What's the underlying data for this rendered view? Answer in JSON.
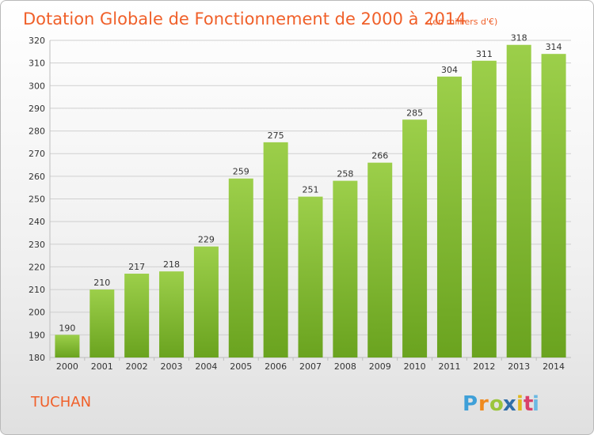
{
  "chart_data": {
    "type": "bar",
    "title": "Dotation Globale de Fonctionnement de 2000 à 2014",
    "subtitle": "(en milliers d'€)",
    "categories": [
      "2000",
      "2001",
      "2002",
      "2003",
      "2004",
      "2005",
      "2006",
      "2007",
      "2008",
      "2009",
      "2010",
      "2011",
      "2012",
      "2013",
      "2014"
    ],
    "values": [
      190,
      210,
      217,
      218,
      229,
      259,
      275,
      251,
      258,
      266,
      285,
      304,
      311,
      318,
      314
    ],
    "ylim": [
      180,
      320
    ],
    "yticks": [
      180,
      190,
      200,
      210,
      220,
      230,
      240,
      250,
      260,
      270,
      280,
      290,
      300,
      310,
      320
    ],
    "grid": true,
    "bar_color": "#7ab62a"
  },
  "commune": "TUCHAN",
  "logo": {
    "text": "Proxiti",
    "letters": [
      "P",
      "r",
      "o",
      "x",
      "i",
      "t",
      "i"
    ],
    "colors": [
      "#3fa0d8",
      "#f08a1e",
      "#9bc53d",
      "#2f6ea8",
      "#e0b81c",
      "#d9416a",
      "#6bb8e2"
    ]
  }
}
